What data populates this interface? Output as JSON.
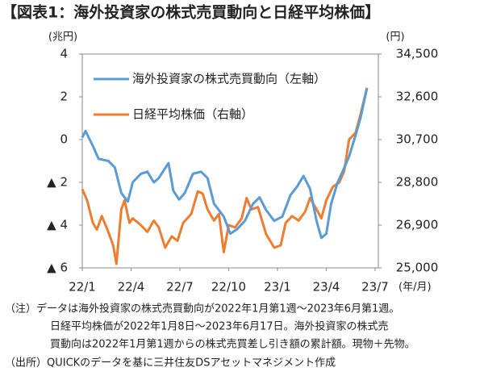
{
  "chart_data": {
    "type": "line",
    "title": "【図表1：海外投資家の株式売買動向と日経平均株価】",
    "y_unit": "(兆円)",
    "y2_unit": "(円)",
    "x_unit": "(年/月)",
    "xlim": [
      0,
      18.2
    ],
    "xticks": [
      {
        "value": 0,
        "label": "22/1"
      },
      {
        "value": 3,
        "label": "22/4"
      },
      {
        "value": 6,
        "label": "22/7"
      },
      {
        "value": 9,
        "label": "22/10"
      },
      {
        "value": 12,
        "label": "23/1"
      },
      {
        "value": 15,
        "label": "23/4"
      },
      {
        "value": 18,
        "label": "23/7"
      }
    ],
    "ylim": [
      -6,
      4
    ],
    "yticks": [
      4,
      2,
      0,
      {
        "value": -2,
        "label": "▲ 2"
      },
      {
        "value": -4,
        "label": "▲ 4"
      },
      {
        "value": -6,
        "label": "▲ 6"
      }
    ],
    "y2lim": [
      25000,
      34500
    ],
    "y2ticks": [
      {
        "value": 34500,
        "label": "34,500"
      },
      {
        "value": 32600,
        "label": "32,600"
      },
      {
        "value": 30700,
        "label": "30,700"
      },
      {
        "value": 28800,
        "label": "28,800"
      },
      {
        "value": 26900,
        "label": "26,900"
      },
      {
        "value": 25000,
        "label": "25,000"
      }
    ],
    "series": [
      {
        "name": "日経平均株価（右軸）",
        "color": "#ed7d31",
        "axis": "y2",
        "x": [
          0,
          0.3,
          0.65,
          0.9,
          1.2,
          1.6,
          1.9,
          2.1,
          2.4,
          2.6,
          2.9,
          3.1,
          3.6,
          4.0,
          4.4,
          4.7,
          5.1,
          5.5,
          5.85,
          6.2,
          6.7,
          7.1,
          7.4,
          7.7,
          8.1,
          8.4,
          8.7,
          9.0,
          9.4,
          9.8,
          10.1,
          10.4,
          10.8,
          11.3,
          11.8,
          12.2,
          12.5,
          12.9,
          13.3,
          13.7,
          14.0,
          14.4,
          14.7,
          15.0,
          15.4,
          15.8,
          16.1,
          16.4,
          16.8,
          17.1,
          17.5
        ],
        "values": [
          28500,
          28000,
          27000,
          26700,
          27300,
          26600,
          26000,
          25180,
          27600,
          28000,
          27000,
          27200,
          26900,
          26600,
          27100,
          26800,
          25900,
          26400,
          26200,
          27000,
          27400,
          28400,
          28300,
          27600,
          27100,
          27400,
          25700,
          26900,
          26800,
          27200,
          28100,
          27600,
          27700,
          26500,
          25900,
          26000,
          27000,
          27300,
          27100,
          27500,
          28100,
          27600,
          27200,
          28000,
          28600,
          28800,
          29300,
          30700,
          31000,
          31800,
          33000
        ]
      },
      {
        "name": "海外投資家の株式売買動向（左軸）",
        "color": "#5b9bd5",
        "axis": "y",
        "x": [
          0,
          0.2,
          0.65,
          1.0,
          1.6,
          2.0,
          2.4,
          2.8,
          3.1,
          3.6,
          4.0,
          4.4,
          4.7,
          5.3,
          5.6,
          5.95,
          6.3,
          6.8,
          7.3,
          7.7,
          8.1,
          8.7,
          9.1,
          9.5,
          10.0,
          10.5,
          10.9,
          11.3,
          11.8,
          12.3,
          12.8,
          13.2,
          13.6,
          14.0,
          14.4,
          14.7,
          15.0,
          15.3,
          15.7,
          16.0,
          16.4,
          16.8,
          17.1,
          17.5
        ],
        "values": [
          0.1,
          0.4,
          -0.3,
          -0.9,
          -1.0,
          -1.3,
          -2.5,
          -2.9,
          -2.0,
          -1.6,
          -1.5,
          -2.0,
          -1.8,
          -1.1,
          -2.4,
          -2.8,
          -2.5,
          -1.6,
          -1.5,
          -1.8,
          -3.0,
          -3.6,
          -4.4,
          -4.2,
          -3.8,
          -3.0,
          -2.7,
          -3.3,
          -3.8,
          -3.6,
          -2.6,
          -2.2,
          -1.7,
          -2.3,
          -3.8,
          -4.6,
          -4.4,
          -3.0,
          -2.0,
          -1.5,
          -0.8,
          0.2,
          1.0,
          2.4
        ]
      }
    ],
    "notes": [
      "（注）データは海外投資家の株式売買動向が2022年1月第1週～2023年6月第1週。",
      "日経平均株価が2022年1月8日～2023年6月17日。海外投資家の株式売",
      "買動向は2022年1月第1週からの株式売買差し引き額の累計額。現物＋先物。",
      "（出所）QUICKのデータを基に三井住友DSアセットマネジメント作成"
    ]
  }
}
